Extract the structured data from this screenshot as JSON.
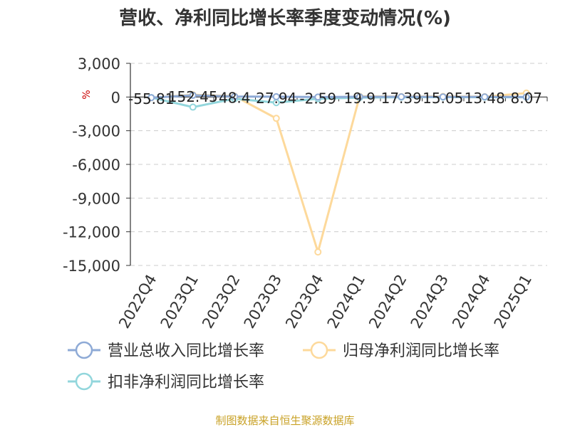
{
  "chart_data": {
    "type": "line",
    "title": "营收、净利同比增长率季度变动情况(%)",
    "ylabel": "%",
    "categories": [
      "2022Q4",
      "2023Q1",
      "2023Q2",
      "2023Q3",
      "2023Q4",
      "2024Q1",
      "2024Q2",
      "2024Q3",
      "2024Q4",
      "2025Q1"
    ],
    "ylim": [
      -15000,
      3000
    ],
    "yticks": [
      3000,
      0,
      -3000,
      -6000,
      -9000,
      -12000,
      -15000
    ],
    "ytick_labels": [
      "3,000",
      "0",
      "-3,000",
      "-6,000",
      "-9,000",
      "-12,000",
      "-15,000"
    ],
    "grid": true,
    "legend_position": "bottom",
    "series": [
      {
        "name": "营业总收入同比增长率",
        "color": "#8eaad6",
        "values": [
          -55.81,
          152.45,
          48.4,
          27.94,
          -2.59,
          19.9,
          17.39,
          15.05,
          13.48,
          8.07
        ],
        "data_labels": [
          "-55.81",
          "152.45",
          "48.4",
          "27.94",
          "-2.59",
          "19.9",
          "17.39",
          "15.05",
          "13.48",
          "8.07"
        ]
      },
      {
        "name": "归母净利润同比增长率",
        "color": "#fdd99b",
        "values": [
          -60,
          200,
          80,
          -1900,
          -13800,
          60,
          40,
          50,
          30,
          350
        ]
      },
      {
        "name": "扣非净利润同比增长率",
        "color": "#92d6dc",
        "values": [
          -40,
          -900,
          -150,
          -500,
          -150,
          -50,
          -20,
          -10,
          -15,
          -20
        ]
      }
    ],
    "source_note": "制图数据来自恒生聚源数据库"
  }
}
